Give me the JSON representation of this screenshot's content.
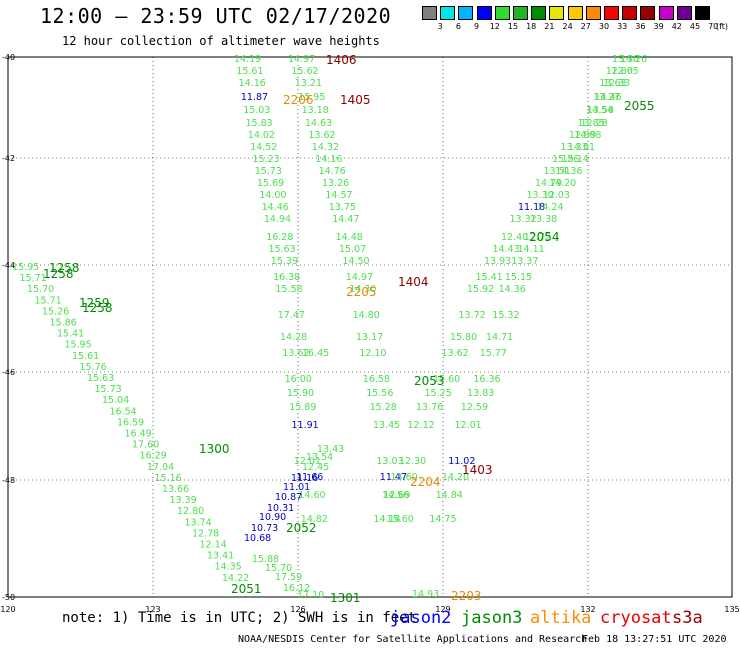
{
  "header": {
    "title": "12:00 — 23:59 UTC 02/17/2020",
    "subtitle": "12 hour collection of altimeter wave heights"
  },
  "colorbar": {
    "colors": [
      "#808080",
      "#00e6e6",
      "#00b4ff",
      "#0000ff",
      "#2ddc2d",
      "#23b423",
      "#008c00",
      "#e6e600",
      "#ffc800",
      "#ff8c00",
      "#ff0000",
      "#c80000",
      "#960000",
      "#c800c8",
      "#6e0096",
      "#000000"
    ],
    "labels": [
      "3",
      "6",
      "9",
      "12",
      "15",
      "18",
      "21",
      "24",
      "27",
      "30",
      "33",
      "36",
      "39",
      "42",
      "45",
      "70"
    ],
    "unit": "(ft)"
  },
  "axes": {
    "lat_labels": [
      "-40",
      "-42",
      "-44",
      "-46",
      "-48",
      "-50"
    ],
    "lon_labels": [
      "120",
      "123",
      "126",
      "129",
      "132",
      "135"
    ]
  },
  "map_data": {
    "swh_values": [
      [
        "14.19",
        "14.97",
        "14.26",
        "13.30"
      ],
      [
        "15.61",
        "15.62",
        "12.65",
        "12.80"
      ],
      [
        "14.16",
        "13.21",
        "12.33",
        "13.63"
      ],
      [
        "11.87",
        "15.95",
        "14.46",
        "13.27"
      ],
      [
        "15.03",
        "13.18",
        "14.54",
        "13.58"
      ],
      [
        "15.83",
        "14.63",
        "13.85",
        "12.28"
      ],
      [
        "14.02",
        "13.62",
        "12.99",
        "14.88"
      ],
      [
        "14.52",
        "14.32",
        "13.33",
        "14.01"
      ],
      [
        "15.23",
        "14.16",
        "15.26",
        "15.14"
      ],
      [
        "15.73",
        "14.76",
        "13.51",
        "14.36"
      ],
      [
        "15.69",
        "13.26",
        "14.79",
        "14.20"
      ],
      [
        "14.00",
        "14.57",
        "13.30",
        "12.03"
      ],
      [
        "14.46",
        "13.75",
        "11.18",
        "14.24"
      ],
      [
        "14.94",
        "14.47",
        "13.32",
        "13.38"
      ],
      [
        "16.28",
        "14.48",
        "12.40",
        "12.72"
      ],
      [
        "15.63",
        "15.07",
        "14.43",
        "14.11"
      ],
      [
        "15.39",
        "14.50",
        "13.93",
        "13.37"
      ],
      [
        "16.38",
        "14.97",
        "15.41",
        "15.15"
      ],
      [
        "15.58",
        "14.30",
        "15.92",
        "14.36"
      ],
      [
        "17.47",
        "14.80",
        "13.72",
        "15.32"
      ],
      [
        "14.28",
        "13.17",
        "15.80",
        "14.71"
      ],
      [
        "13.62",
        "12.10",
        "13.62",
        "15.77"
      ],
      [
        "16.00",
        "16.58",
        "15.60",
        "16.36"
      ],
      [
        "15.90",
        "15.56",
        "15.25",
        "13.83"
      ],
      [
        "15.89",
        "15.28",
        "13.76",
        "12.59"
      ],
      [
        "11.91",
        "13.45",
        "12.12",
        "12.01"
      ],
      [
        "12.01",
        "13.03",
        "12.30",
        "11.02"
      ],
      [
        "11.66",
        "11.47",
        "13.60",
        "14.20"
      ],
      [
        "14.60",
        "12.69",
        "14.56",
        "14.84"
      ],
      [
        "14.82",
        "15.60",
        "14.14",
        "14.75"
      ],
      [
        "14.93"
      ],
      [
        "15.95",
        "15.71",
        "15.70",
        "15.71",
        "15.26",
        "15.86",
        "15.41",
        "15.95",
        "15.61",
        "15.76",
        "15.63",
        "15.73",
        "15.04",
        "16.54",
        "16.59",
        "16.49",
        "17.60",
        "16.29",
        "17.04",
        "15.16",
        "13.66",
        "13.39",
        "12.80",
        "13.74",
        "12.78",
        "12.14",
        "13.41",
        "14.35",
        "14.22"
      ],
      [
        "11.16",
        "11.01",
        "10.87",
        "10.31",
        "10.90",
        "10.73",
        "10.68",
        "15.88",
        "15.70",
        "17.59",
        "16.12",
        "17.10",
        "16.45",
        "12.45",
        "13.54",
        "13.43"
      ]
    ],
    "times": [
      "1406",
      "1405",
      "2206",
      "2205",
      "1404",
      "2055",
      "2054",
      "1258",
      "1258",
      "1259",
      "1258",
      "1300",
      "2053",
      "1403",
      "2204",
      "2203",
      "2052",
      "2051",
      "1301"
    ],
    "track_colors": {
      "green_light": "#4ede4e",
      "green_dark": "#008c00",
      "blue": "#0000c8",
      "orange": "#e68c00",
      "darkred": "#8c0000"
    }
  },
  "footer": {
    "note": "note: 1) Time is in UTC; 2) SWH is in feet",
    "satellites": [
      {
        "name": "jason2",
        "color": "#0000ff"
      },
      {
        "name": "jason3",
        "color": "#008c00"
      },
      {
        "name": "altika",
        "color": "#ff8c00"
      },
      {
        "name": "cryosat",
        "color": "#e60000"
      },
      {
        "name": "s3a",
        "color": "#960000"
      }
    ],
    "credit": "NOAA/NESDIS Center for Satellite Applications and Research",
    "stamp": "Feb 18 13:27:51 UTC 2020"
  }
}
